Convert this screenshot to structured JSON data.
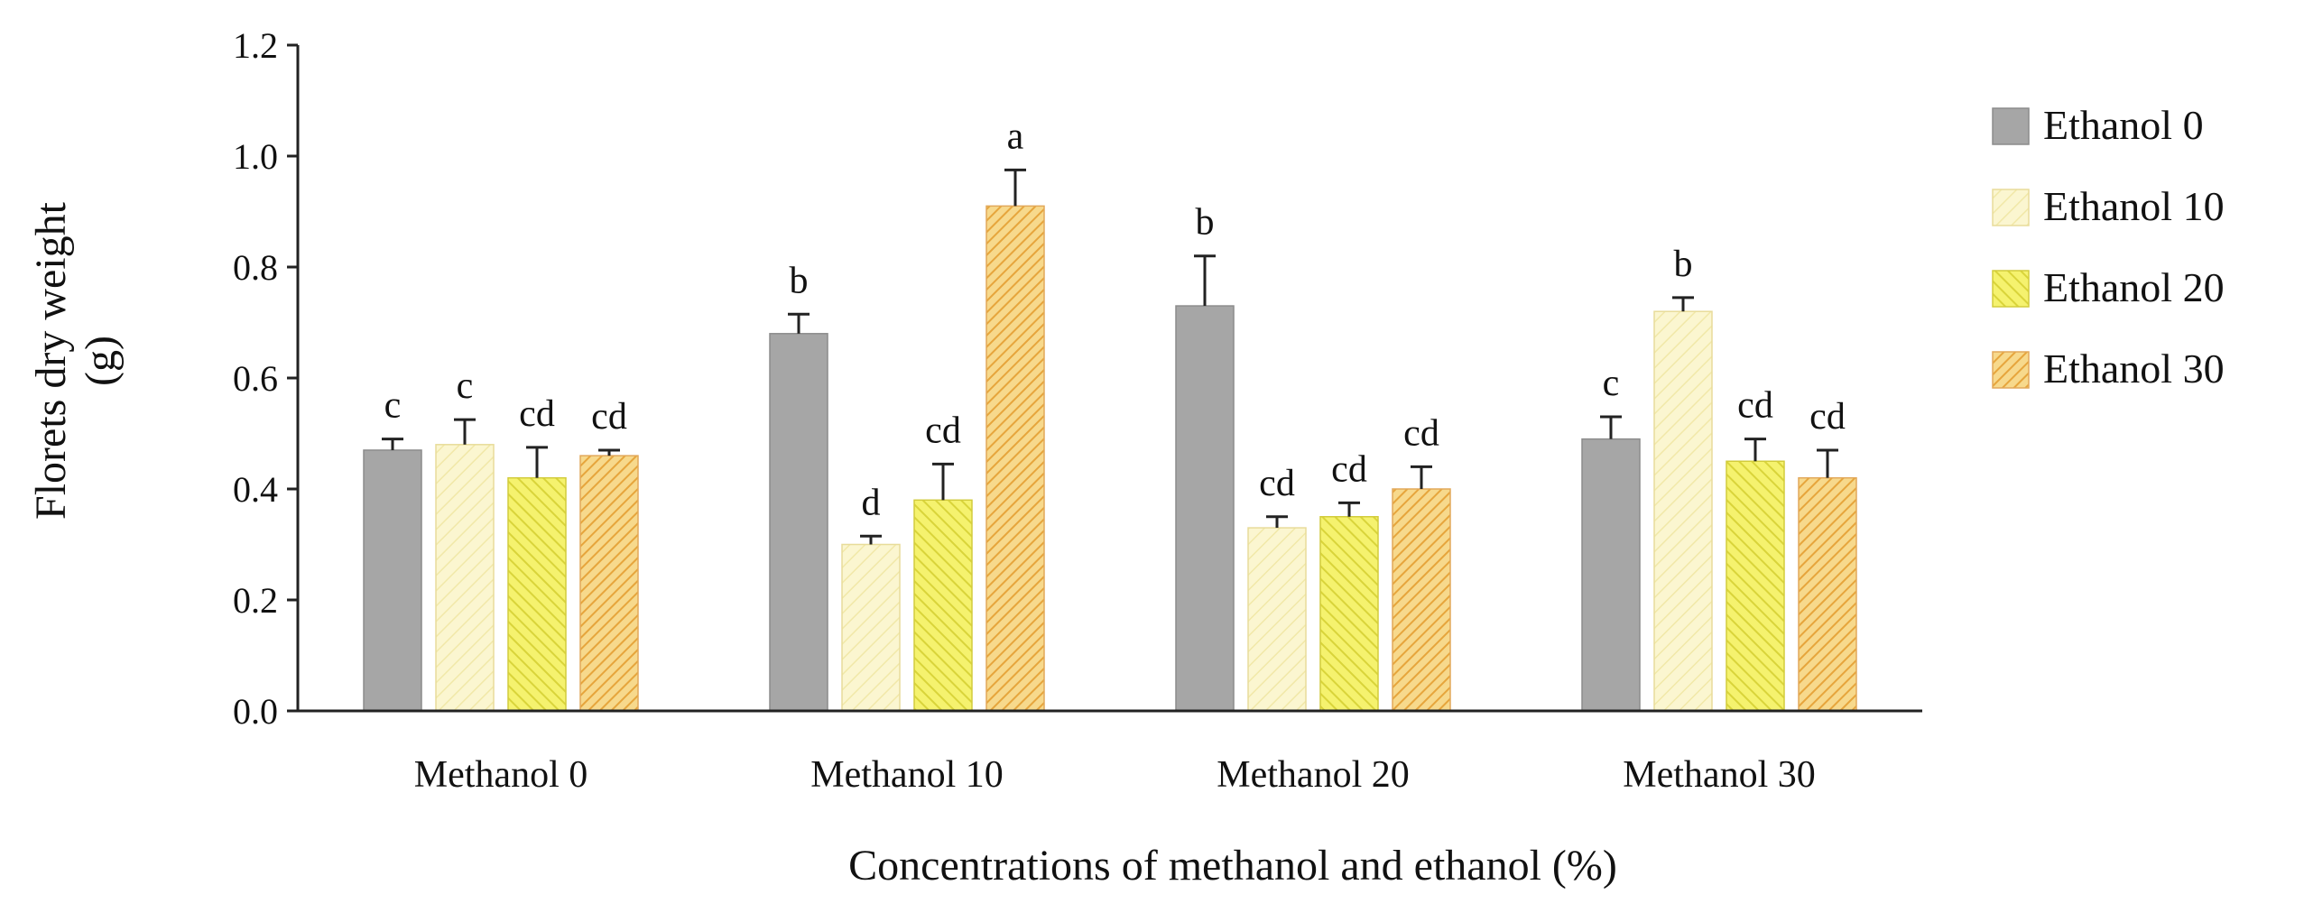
{
  "chart_data": {
    "type": "bar",
    "title": "",
    "xlabel": "Concentrations of methanol and ethanol (%)",
    "ylabel_lines": [
      "Florets dry weight",
      "(g)"
    ],
    "ylim": [
      0,
      1.2
    ],
    "ytick_step": 0.2,
    "ytick_labels": [
      "0.0",
      "0.2",
      "0.4",
      "0.6",
      "0.8",
      "1.0",
      "1.2"
    ],
    "legend_position": "right",
    "categories": [
      "Methanol 0",
      "Methanol 10",
      "Methanol 20",
      "Methanol 30"
    ],
    "series": [
      {
        "name": "Ethanol 0",
        "color": "#a6a6a6",
        "pattern": "solid",
        "values": [
          0.47,
          0.68,
          0.73,
          0.49
        ],
        "errors": [
          0.02,
          0.035,
          0.09,
          0.04
        ],
        "labels": [
          "c",
          "b",
          "b",
          "c"
        ]
      },
      {
        "name": "Ethanol 10",
        "color": "#fbf6d0",
        "pattern": "light",
        "values": [
          0.48,
          0.3,
          0.33,
          0.72
        ],
        "errors": [
          0.045,
          0.015,
          0.02,
          0.025
        ],
        "labels": [
          "c",
          "d",
          "cd",
          "b"
        ]
      },
      {
        "name": "Ethanol 20",
        "color": "#eeea55",
        "pattern": "medium",
        "values": [
          0.42,
          0.38,
          0.35,
          0.45
        ],
        "errors": [
          0.055,
          0.065,
          0.025,
          0.04
        ],
        "labels": [
          "cd",
          "cd",
          "cd",
          "cd"
        ]
      },
      {
        "name": "Ethanol 30",
        "color": "#f3c76a",
        "pattern": "dense",
        "values": [
          0.46,
          0.91,
          0.4,
          0.42
        ],
        "errors": [
          0.01,
          0.065,
          0.04,
          0.05
        ],
        "labels": [
          "cd",
          "a",
          "cd",
          "cd"
        ]
      }
    ]
  }
}
